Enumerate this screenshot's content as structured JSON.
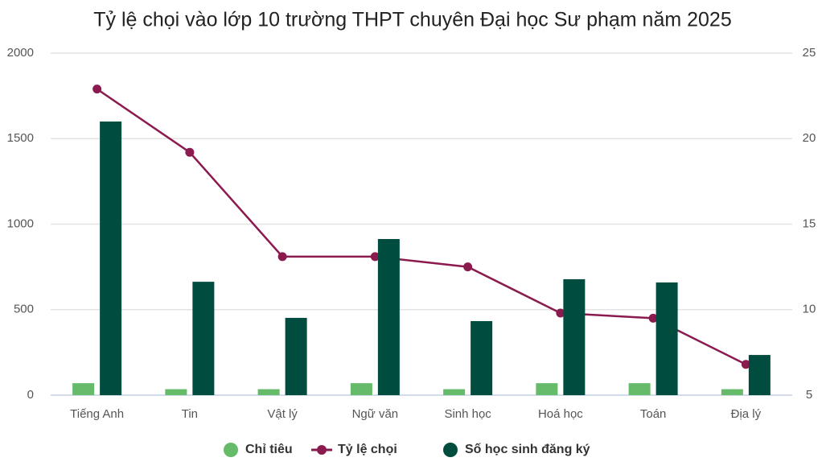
{
  "chart_data": {
    "type": "bar-line",
    "title": "Tỷ lệ chọi vào lớp 10 trường THPT chuyên Đại học Sư phạm năm 2025",
    "categories": [
      "Tiếng Anh",
      "Tin",
      "Vật lý",
      "Ngữ văn",
      "Sinh học",
      "Hoá học",
      "Toán",
      "Địa lý"
    ],
    "series": [
      {
        "name": "Chỉ tiêu",
        "color": "#66bb6a",
        "type": "bar",
        "values": [
          70,
          35,
          35,
          70,
          35,
          70,
          70,
          35
        ]
      },
      {
        "name": "Tỷ lệ chọi",
        "color": "#8b1a4f",
        "type": "line",
        "axis": "y2",
        "values": [
          22.9,
          19.2,
          13.1,
          13.1,
          12.5,
          9.8,
          9.5,
          6.8
        ]
      },
      {
        "name": "Số học sinh đăng ký",
        "color": "#004d40",
        "type": "bar",
        "values": [
          1600,
          663,
          452,
          913,
          433,
          678,
          659,
          235
        ]
      }
    ],
    "ylim": [
      0,
      2000
    ],
    "yticks": [
      0,
      500,
      1000,
      1500,
      2000
    ],
    "y2lim": [
      5,
      25
    ],
    "y2ticks": [
      5,
      10,
      15,
      20,
      25
    ],
    "grid": true,
    "legend": "bottom"
  }
}
